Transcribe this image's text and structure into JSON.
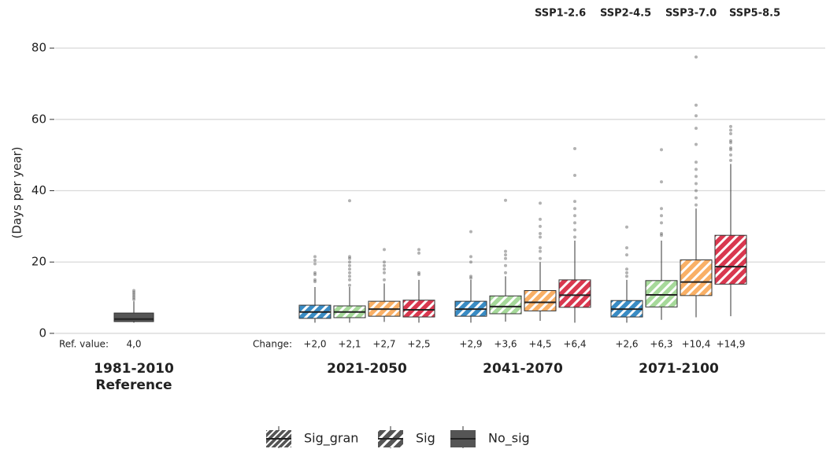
{
  "chart_data": {
    "type": "box",
    "ylabel": "(Days per year)",
    "ylim": [
      -2,
      84
    ],
    "yticks": [
      0,
      20,
      40,
      60,
      80
    ],
    "grid": true,
    "legend_position": "top-right",
    "reference": {
      "label": [
        "1981-2010",
        "Reference"
      ],
      "color": "#555555",
      "ref_title": "Ref. value:",
      "ref_value": 4.0,
      "ref_value_label": "4,0",
      "box": {
        "whislo": 3,
        "q1": 3.3,
        "med": 4.0,
        "q3": 5.7,
        "whishi": 9,
        "fliers": [
          9.5,
          10,
          10.5,
          11,
          11.5,
          12
        ]
      }
    },
    "categories": [
      "2021-2050",
      "2041-2070",
      "2071-2100"
    ],
    "change_title": "Change:",
    "series": [
      {
        "name": "SSP1-2.6",
        "color": "#3a8cc4",
        "boxes": [
          {
            "whislo": 3,
            "q1": 4.2,
            "med": 6.0,
            "q3": 7.9,
            "whishi": 13,
            "fliers": [
              14.5,
              15,
              16.5,
              17,
              19.5,
              20.5,
              21.5
            ]
          },
          {
            "whislo": 3,
            "q1": 4.8,
            "med": 6.8,
            "q3": 9.0,
            "whishi": 15,
            "fliers": [
              15.5,
              16,
              20,
              21.5,
              28.5
            ]
          },
          {
            "whislo": 3,
            "q1": 4.6,
            "med": 6.8,
            "q3": 9.2,
            "whishi": 15,
            "fliers": [
              16,
              17,
              18,
              22,
              24,
              29.8
            ]
          }
        ],
        "changes": [
          2.0,
          2.9,
          2.6
        ],
        "change_labels": [
          "+2,0",
          "+2,9",
          "+2,6"
        ]
      },
      {
        "name": "SSP2-4.5",
        "color": "#a6d99a",
        "boxes": [
          {
            "whislo": 3,
            "q1": 4.4,
            "med": 6.0,
            "q3": 7.7,
            "whishi": 13,
            "fliers": [
              13.5,
              15,
              16,
              17,
              18,
              19,
              20,
              21,
              21.5,
              37.2
            ]
          },
          {
            "whislo": 3.3,
            "q1": 5.5,
            "med": 7.5,
            "q3": 10.5,
            "whishi": 16,
            "fliers": [
              17,
              19,
              21,
              22,
              23,
              37.3
            ]
          },
          {
            "whislo": 3.8,
            "q1": 7.4,
            "med": 10.8,
            "q3": 14.8,
            "whishi": 26,
            "fliers": [
              27.5,
              28,
              31,
              33,
              35,
              42.5,
              51.5
            ]
          }
        ],
        "changes": [
          2.1,
          3.6,
          6.3
        ],
        "change_labels": [
          "+2,1",
          "+3,6",
          "+6,3"
        ]
      },
      {
        "name": "SSP3-7.0",
        "color": "#f9b066",
        "boxes": [
          {
            "whislo": 3.2,
            "q1": 4.8,
            "med": 6.8,
            "q3": 9.0,
            "whishi": 14,
            "fliers": [
              15,
              17,
              18,
              19,
              20,
              23.5
            ]
          },
          {
            "whislo": 3.5,
            "q1": 6.3,
            "med": 8.7,
            "q3": 12,
            "whishi": 20,
            "fliers": [
              21,
              23,
              24,
              27,
              28,
              30,
              32,
              36.5
            ]
          },
          {
            "whislo": 4.5,
            "q1": 10.6,
            "med": 14.4,
            "q3": 20.6,
            "whishi": 35,
            "fliers": [
              36,
              38,
              40,
              42,
              44,
              46,
              48,
              53,
              57.5,
              61,
              64,
              77.5
            ]
          }
        ],
        "changes": [
          2.7,
          4.5,
          10.4
        ],
        "change_labels": [
          "+2,7",
          "+4,5",
          "+10,4"
        ]
      },
      {
        "name": "SSP5-8.5",
        "color": "#d9384f",
        "boxes": [
          {
            "whislo": 3,
            "q1": 4.6,
            "med": 6.6,
            "q3": 9.3,
            "whishi": 15,
            "fliers": [
              16.5,
              17,
              22.5,
              23.5
            ]
          },
          {
            "whislo": 3,
            "q1": 7.3,
            "med": 10.7,
            "q3": 15,
            "whishi": 26,
            "fliers": [
              27,
              29,
              31,
              33,
              35,
              37,
              44.3,
              51.8
            ]
          },
          {
            "whislo": 4.8,
            "q1": 13.8,
            "med": 18.7,
            "q3": 27.5,
            "whishi": 47.5,
            "fliers": [
              48.5,
              50,
              51.5,
              52,
              53.5,
              54,
              56,
              57,
              58
            ]
          }
        ],
        "changes": [
          2.5,
          6.4,
          14.9
        ],
        "change_labels": [
          "+2,5",
          "+6,4",
          "+14,9"
        ]
      }
    ],
    "sig_legend": [
      "Sig_gran",
      "Sig",
      "No_sig"
    ]
  }
}
